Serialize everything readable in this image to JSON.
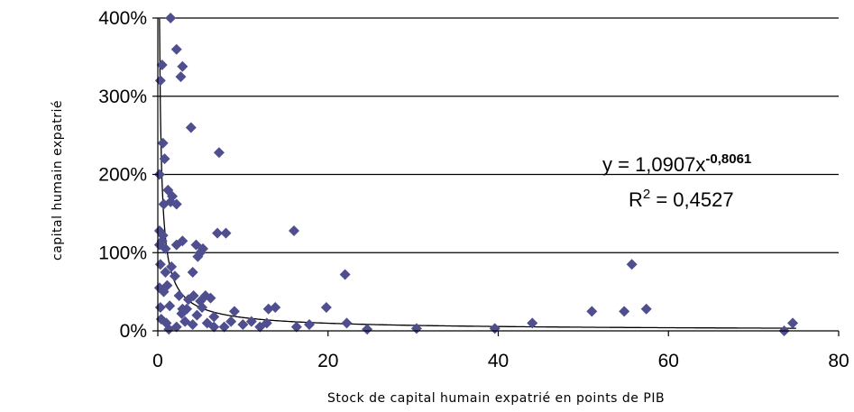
{
  "chart_data": {
    "type": "scatter",
    "xlabel": "Stock de capital humain expatrié en points de PIB",
    "ylabel": "capital humain expatrié",
    "xlim": [
      0,
      80
    ],
    "ylim": [
      0,
      4
    ],
    "x_ticks": [
      "0",
      "20",
      "40",
      "60",
      "80"
    ],
    "y_ticks": [
      "0%",
      "100%",
      "200%",
      "300%",
      "400%"
    ],
    "grid": "horizontal",
    "marker_color": "#4f4f8f",
    "trendline": {
      "type": "power",
      "coefficient": 1.0907,
      "exponent": -0.8061,
      "equation_prefix": "y = 1,0907x",
      "equation_exponent": "-0,8061",
      "r2_prefix": "R",
      "r2_sup": "2",
      "r2_value": " = 0,4527"
    },
    "points": [
      [
        1.5,
        4.0
      ],
      [
        0.5,
        3.4
      ],
      [
        2.2,
        3.6
      ],
      [
        2.9,
        3.38
      ],
      [
        2.7,
        3.25
      ],
      [
        0.3,
        3.2
      ],
      [
        3.9,
        2.6
      ],
      [
        0.6,
        2.4
      ],
      [
        0.8,
        2.2
      ],
      [
        7.2,
        2.28
      ],
      [
        0.2,
        2.0
      ],
      [
        1.2,
        1.8
      ],
      [
        1.5,
        1.65
      ],
      [
        2.2,
        1.62
      ],
      [
        0.7,
        1.62
      ],
      [
        1.7,
        1.72
      ],
      [
        0.2,
        1.28
      ],
      [
        0.6,
        1.22
      ],
      [
        7.0,
        1.25
      ],
      [
        8.0,
        1.25
      ],
      [
        16.0,
        1.28
      ],
      [
        0.2,
        1.1
      ],
      [
        0.5,
        1.15
      ],
      [
        0.9,
        1.05
      ],
      [
        2.2,
        1.1
      ],
      [
        2.9,
        1.15
      ],
      [
        4.5,
        1.1
      ],
      [
        5.0,
        1.0
      ],
      [
        4.7,
        0.95
      ],
      [
        5.3,
        1.05
      ],
      [
        0.3,
        0.85
      ],
      [
        0.9,
        0.75
      ],
      [
        1.6,
        0.82
      ],
      [
        2.0,
        0.7
      ],
      [
        4.1,
        0.75
      ],
      [
        22.0,
        0.72
      ],
      [
        55.7,
        0.85
      ],
      [
        0.2,
        0.55
      ],
      [
        0.7,
        0.5
      ],
      [
        1.1,
        0.58
      ],
      [
        2.5,
        0.45
      ],
      [
        3.6,
        0.4
      ],
      [
        4.2,
        0.45
      ],
      [
        5.0,
        0.38
      ],
      [
        5.6,
        0.45
      ],
      [
        6.2,
        0.42
      ],
      [
        0.3,
        0.3
      ],
      [
        1.4,
        0.32
      ],
      [
        2.8,
        0.22
      ],
      [
        3.4,
        0.28
      ],
      [
        4.6,
        0.2
      ],
      [
        5.2,
        0.3
      ],
      [
        6.6,
        0.18
      ],
      [
        9.0,
        0.25
      ],
      [
        13.0,
        0.28
      ],
      [
        13.8,
        0.3
      ],
      [
        19.8,
        0.3
      ],
      [
        51.0,
        0.25
      ],
      [
        54.8,
        0.25
      ],
      [
        57.4,
        0.28
      ],
      [
        0.4,
        0.15
      ],
      [
        1.0,
        0.1
      ],
      [
        2.2,
        0.05
      ],
      [
        3.2,
        0.12
      ],
      [
        4.1,
        0.08
      ],
      [
        5.8,
        0.1
      ],
      [
        7.8,
        0.05
      ],
      [
        8.6,
        0.12
      ],
      [
        10.0,
        0.08
      ],
      [
        11.0,
        0.12
      ],
      [
        12.0,
        0.05
      ],
      [
        12.8,
        0.1
      ],
      [
        16.3,
        0.05
      ],
      [
        17.8,
        0.08
      ],
      [
        22.2,
        0.1
      ],
      [
        24.6,
        0.02
      ],
      [
        30.4,
        0.03
      ],
      [
        39.6,
        0.03
      ],
      [
        44.0,
        0.1
      ],
      [
        73.6,
        0.0
      ],
      [
        74.6,
        0.1
      ],
      [
        1.3,
        0.02
      ],
      [
        6.6,
        0.05
      ],
      [
        2.9,
        0.28
      ]
    ]
  }
}
